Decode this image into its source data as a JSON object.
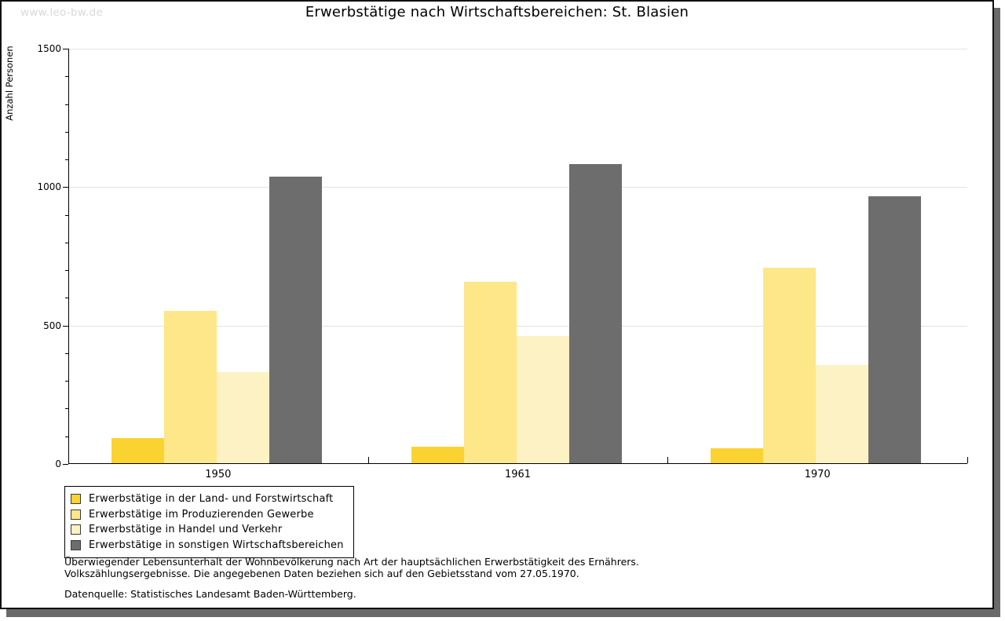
{
  "page": {
    "watermark": "www.leo-bw.de",
    "title": "Erwerbstätige nach Wirtschaftsbereichen: St. Blasien"
  },
  "chart_data": {
    "type": "bar",
    "title": "Erwerbstätige nach Wirtschaftsbereichen: St. Blasien",
    "xlabel": "",
    "ylabel": "Anzahl Personen",
    "ylim": [
      0,
      1500
    ],
    "yticks": [
      0,
      500,
      1000,
      1500
    ],
    "minor_tick_step": 100,
    "grid": "horizontal",
    "legend_position": "bottom-left",
    "categories": [
      "1950",
      "1961",
      "1970"
    ],
    "series": [
      {
        "name": "Erwerbstätige in der Land- und Forstwirtschaft",
        "color": "#fbd330",
        "values": [
          90,
          60,
          55
        ]
      },
      {
        "name": "Erwerbstätige im Produzierenden Gewerbe",
        "color": "#fde789",
        "values": [
          550,
          655,
          705
        ]
      },
      {
        "name": "Erwerbstätige in Handel und Verkehr",
        "color": "#fcf2c3",
        "values": [
          330,
          460,
          355
        ]
      },
      {
        "name": "Erwerbstätige in sonstigen Wirtschaftsbereichen",
        "color": "#6d6d6d",
        "values": [
          1035,
          1080,
          965
        ]
      }
    ]
  },
  "footnotes": {
    "line1": "Überwiegender Lebensunterhalt der Wohnbevölkerung nach Art der hauptsächlichen Erwerbstätigkeit des Ernährers.",
    "line2": "Volkszählungsergebnisse. Die angegebenen Daten beziehen sich auf den Gebietsstand vom 27.05.1970.",
    "source": "Datenquelle: Statistisches Landesamt Baden-Württemberg."
  },
  "colors": {
    "grid": "#e3e3e3",
    "axis": "#000000",
    "frame_shadow": "#6a6a6a",
    "watermark_text": "#d9d9d9"
  }
}
